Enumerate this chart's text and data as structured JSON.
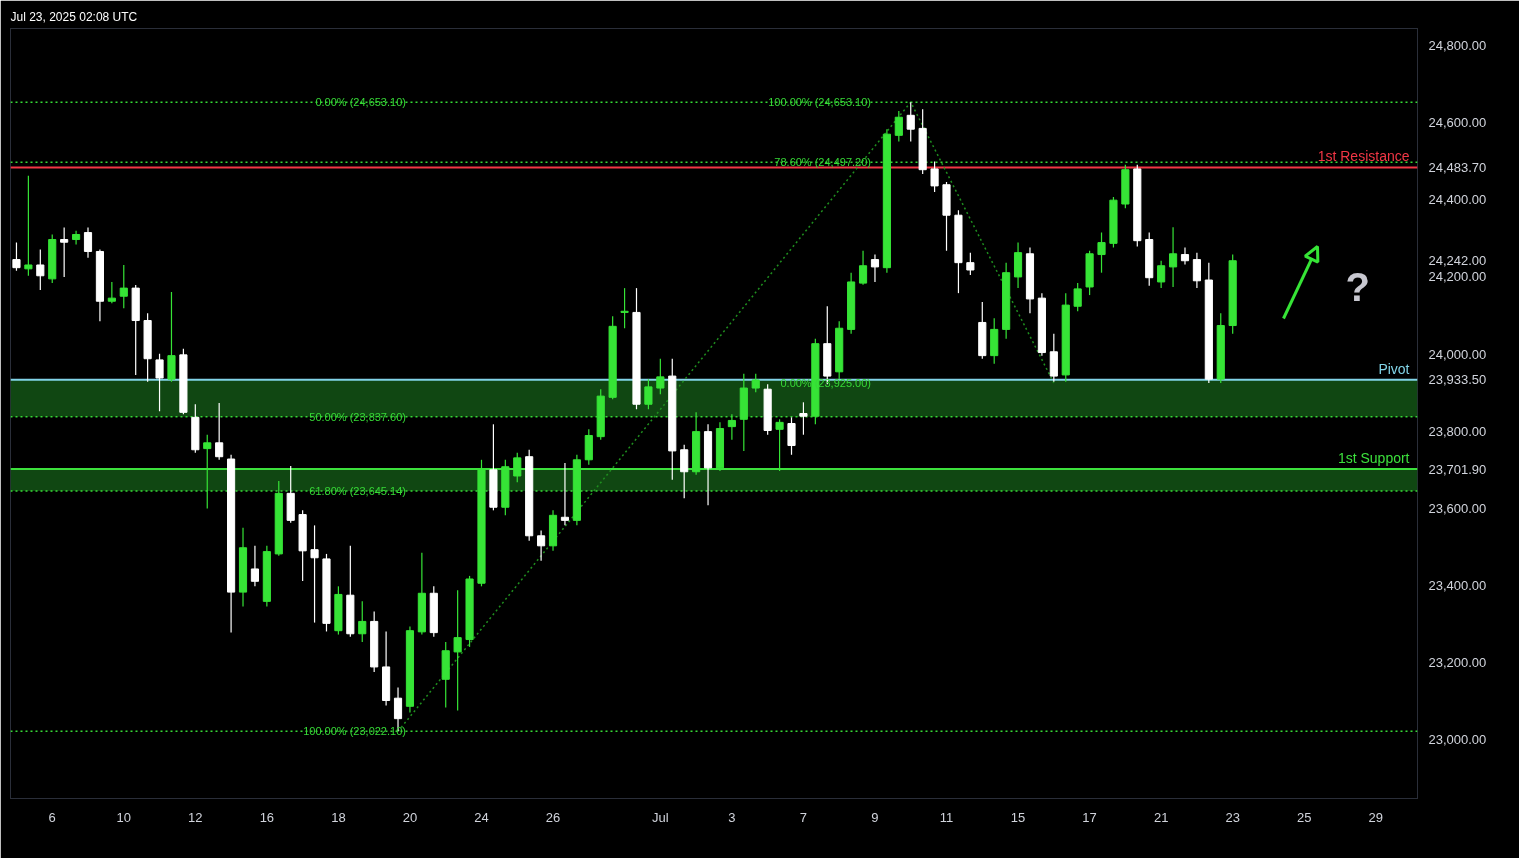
{
  "chart_data": {
    "type": "candlestick",
    "annotations": [
      "Jul 23, 2025 02:08 UTC",
      {
        "text": "0.00% (24,653.10)",
        "x": "20",
        "y": 24653.1
      },
      {
        "text": "50.00% (23,837.60)",
        "x": "20",
        "y": 23837.6
      },
      {
        "text": "61.80% (23,645.14)",
        "x": "20",
        "y": 23645.14
      },
      {
        "text": "100.00% (23,022.10)",
        "x": "20",
        "y": 23022.1
      },
      {
        "text": "100.00% (24,653.10)",
        "x": "9",
        "y": 24653.1
      },
      {
        "text": "78.60% (24,497.20)",
        "x": "9",
        "y": 24497.2
      },
      {
        "text": "0.00% (23,925.00)",
        "x": "9",
        "y": 23925
      },
      "?"
    ],
    "categories": [
      null,
      null,
      null,
      "6",
      null,
      null,
      null,
      null,
      null,
      "10",
      null,
      null,
      null,
      null,
      null,
      "12",
      null,
      null,
      null,
      null,
      null,
      "16",
      null,
      null,
      null,
      null,
      null,
      "18",
      null,
      null,
      null,
      null,
      null,
      "20",
      null,
      null,
      null,
      null,
      null,
      "24",
      null,
      null,
      null,
      null,
      null,
      "26",
      null,
      null,
      null,
      null,
      null,
      null,
      null,
      null,
      "Jul",
      null,
      null,
      null,
      null,
      null,
      "3",
      null,
      null,
      null,
      null,
      null,
      "7",
      null,
      null,
      null,
      null,
      null,
      "9",
      null,
      null,
      null,
      null,
      null,
      "11",
      null,
      null,
      null,
      null,
      null,
      "15",
      null,
      null,
      null,
      null,
      null,
      "17",
      null,
      null,
      null,
      null,
      null,
      "21",
      null,
      null,
      null,
      null,
      null,
      "23",
      null,
      null,
      null,
      null,
      null,
      "25",
      null,
      null,
      null,
      null,
      null,
      "29",
      null,
      null,
      null
    ],
    "ohlc": [
      [
        24245,
        24289,
        24216,
        24224
      ],
      [
        24221,
        24462,
        24203,
        24231
      ],
      [
        24231,
        24271,
        24166,
        24203
      ],
      [
        24195,
        24310,
        24184,
        24297
      ],
      [
        24297,
        24328,
        24200,
        24290
      ],
      [
        24297,
        24320,
        24284,
        24310
      ],
      [
        24315,
        24328,
        24250,
        24266
      ],
      [
        24266,
        24271,
        24085,
        24137
      ],
      [
        24137,
        24187,
        24132,
        24145
      ],
      [
        24150,
        24231,
        24119,
        24171
      ],
      [
        24171,
        24179,
        23946,
        24087
      ],
      [
        24087,
        24106,
        23928,
        23988
      ],
      [
        23985,
        24001,
        23852,
        23938
      ],
      [
        23935,
        24161,
        23928,
        23996
      ],
      [
        23998,
        24014,
        23844,
        23849
      ],
      [
        23836,
        23870,
        23744,
        23752
      ],
      [
        23755,
        23791,
        23600,
        23770
      ],
      [
        23770,
        23873,
        23726,
        23734
      ],
      [
        23728,
        23739,
        23278,
        23383
      ],
      [
        23383,
        23550,
        23346,
        23498
      ],
      [
        23443,
        23503,
        23398,
        23411
      ],
      [
        23359,
        23503,
        23346,
        23488
      ],
      [
        23482,
        23671,
        23477,
        23639
      ],
      [
        23639,
        23710,
        23563,
        23569
      ],
      [
        23584,
        23595,
        23412,
        23490
      ],
      [
        23493,
        23556,
        23304,
        23472
      ],
      [
        23469,
        23482,
        23281,
        23302
      ],
      [
        23283,
        23398,
        23273,
        23377
      ],
      [
        23375,
        23503,
        23267,
        23275
      ],
      [
        23275,
        23359,
        23254,
        23307
      ],
      [
        23307,
        23333,
        23176,
        23189
      ],
      [
        23189,
        23281,
        23089,
        23102
      ],
      [
        23108,
        23136,
        23022.1,
        23055
      ],
      [
        23087,
        23294,
        23071,
        23283
      ],
      [
        23280,
        23485,
        23273,
        23380
      ],
      [
        23380,
        23398,
        23267,
        23278
      ],
      [
        23157,
        23254,
        23084,
        23231
      ],
      [
        23228,
        23388,
        23076,
        23265
      ],
      [
        23260,
        23425,
        23241,
        23417
      ],
      [
        23406,
        23726,
        23398,
        23702
      ],
      [
        23700,
        23818,
        23595,
        23603
      ],
      [
        23603,
        23726,
        23582,
        23708
      ],
      [
        23684,
        23744,
        23668,
        23731
      ],
      [
        23734,
        23752,
        23516,
        23529
      ],
      [
        23529,
        23543,
        23464,
        23503
      ],
      [
        23503,
        23595,
        23490,
        23582
      ],
      [
        23577,
        23718,
        23556,
        23569
      ],
      [
        23569,
        23739,
        23556,
        23726
      ],
      [
        23726,
        23805,
        23713,
        23789
      ],
      [
        23786,
        23909,
        23778,
        23891
      ],
      [
        23888,
        24098,
        23883,
        24072
      ],
      [
        24108,
        24171,
        24067,
        24111
      ],
      [
        24108,
        24171,
        23857,
        23870
      ],
      [
        23870,
        23935,
        23857,
        23915
      ],
      [
        23912,
        23988,
        23896,
        23941
      ],
      [
        23943,
        23988,
        23674,
        23749
      ],
      [
        23752,
        23765,
        23626,
        23695
      ],
      [
        23695,
        23849,
        23687,
        23799
      ],
      [
        23799,
        23818,
        23608,
        23705
      ],
      [
        23705,
        23823,
        23697,
        23807
      ],
      [
        23812,
        23844,
        23778,
        23828
      ],
      [
        23831,
        23949,
        23749,
        23912
      ],
      [
        23912,
        23949,
        23901,
        23933
      ],
      [
        23909,
        23922,
        23791,
        23802
      ],
      [
        23805,
        23831,
        23697,
        23823
      ],
      [
        23820,
        23836,
        23739,
        23763
      ],
      [
        23846,
        23875,
        23791,
        23839
      ],
      [
        23839,
        24040,
        23818,
        24027
      ],
      [
        24027,
        24124,
        23922,
        23943
      ],
      [
        23954,
        24085,
        23935,
        24067
      ],
      [
        24064,
        24211,
        24053,
        24187
      ],
      [
        24184,
        24268,
        24180,
        24229
      ],
      [
        24245,
        24258,
        24187,
        24226
      ],
      [
        24224,
        24583,
        24211,
        24570
      ],
      [
        24567,
        24630,
        24551,
        24614
      ],
      [
        24619,
        24653.1,
        24551,
        24583
      ],
      [
        24585,
        24635,
        24467,
        24478
      ],
      [
        24480,
        24499,
        24420,
        24436
      ],
      [
        24439,
        24446,
        24268,
        24360
      ],
      [
        24360,
        24373,
        24158,
        24237
      ],
      [
        24237,
        24263,
        24205,
        24218
      ],
      [
        24082,
        24135,
        23988,
        23996
      ],
      [
        23996,
        24093,
        23975,
        24064
      ],
      [
        24064,
        24237,
        24040,
        24211
      ],
      [
        24200,
        24289,
        24171,
        24263
      ],
      [
        24260,
        24276,
        24106,
        24143
      ],
      [
        24145,
        24158,
        23996,
        24004
      ],
      [
        24006,
        24053,
        23928,
        23943
      ],
      [
        23946,
        24158,
        23928,
        24127
      ],
      [
        24124,
        24184,
        24111,
        24169
      ],
      [
        24174,
        24268,
        24153,
        24260
      ],
      [
        24258,
        24315,
        24211,
        24289
      ],
      [
        24287,
        24407,
        24276,
        24399
      ],
      [
        24389,
        24491,
        24378,
        24478
      ],
      [
        24480,
        24491,
        24279,
        24294
      ],
      [
        24297,
        24315,
        24177,
        24198
      ],
      [
        24187,
        24242,
        24171,
        24229
      ],
      [
        24226,
        24329,
        24174,
        24260
      ],
      [
        24258,
        24276,
        24232,
        24242
      ],
      [
        24245,
        24263,
        24171,
        24190
      ],
      [
        24192,
        24237,
        23925,
        23935
      ],
      [
        23935,
        24106,
        23925,
        24074
      ],
      [
        24074,
        24258,
        24053,
        24242
      ],
      null,
      null,
      null,
      null,
      null,
      null,
      null,
      null,
      null,
      null,
      null,
      null,
      null,
      null,
      null
    ],
    "series": [
      {
        "type": "line",
        "line_style": "dotted",
        "color": "#1f8f1f",
        "values": [
          null,
          null,
          null,
          null,
          null,
          null,
          null,
          null,
          null,
          null,
          null,
          null,
          null,
          null,
          null,
          null,
          null,
          null,
          null,
          null,
          null,
          null,
          null,
          null,
          null,
          null,
          null,
          null,
          null,
          null,
          null,
          null,
          23022.1,
          null,
          null,
          null,
          null,
          null,
          null,
          null,
          null,
          null,
          null,
          null,
          null,
          null,
          null,
          null,
          null,
          null,
          null,
          null,
          null,
          null,
          null,
          null,
          null,
          null,
          null,
          null,
          null,
          null,
          null,
          null,
          null,
          null,
          null,
          null,
          null,
          null,
          null,
          null,
          null,
          null,
          null,
          24653.1,
          null,
          null,
          null,
          null,
          null,
          null,
          null,
          null,
          null,
          null,
          null,
          23925,
          null,
          null,
          null,
          null,
          null,
          null,
          null,
          null,
          null,
          null,
          null,
          null,
          null,
          null,
          null,
          null,
          null,
          null,
          null,
          null,
          null,
          null,
          null,
          null,
          null,
          null,
          null,
          null,
          null,
          null
        ]
      }
    ],
    "ylim": [
      22848,
      24844
    ],
    "yticks": [
      {
        "value": 23000,
        "label": "23,000.00"
      },
      {
        "value": 23200,
        "label": "23,200.00"
      },
      {
        "value": 23400,
        "label": "23,400.00"
      },
      {
        "value": 23600,
        "label": "23,600.00"
      },
      {
        "value": 23800,
        "label": "23,800.00"
      },
      {
        "value": 24000,
        "label": "24,000.00"
      },
      {
        "value": 24200,
        "label": "24,200.00"
      },
      {
        "value": 24242,
        "label": "24,242.00"
      },
      {
        "value": 23933.5,
        "label": "23,933.50"
      },
      {
        "value": 23701.9,
        "label": "23,701.90"
      },
      {
        "value": 24483.7,
        "label": "24,483.70"
      },
      {
        "value": 24400,
        "label": "24,400.00"
      },
      {
        "value": 24600,
        "label": "24,600.00"
      },
      {
        "value": 24800,
        "label": "24,800.00"
      }
    ],
    "ref_lines": [
      {
        "axis": "y",
        "value": 24653.1,
        "color": "#36d936",
        "line_style": "dotted"
      },
      {
        "axis": "y",
        "value": 24497.2,
        "color": "#36d936",
        "line_style": "dotted"
      },
      {
        "axis": "y",
        "value": 23837.6,
        "color": "#36d936",
        "line_style": "dotted"
      },
      {
        "axis": "y",
        "value": 23645.14,
        "color": "#36d936",
        "line_style": "dotted"
      },
      {
        "axis": "y",
        "value": 23022.1,
        "color": "#36d936",
        "line_style": "dotted"
      },
      {
        "axis": "y",
        "value": 24483.7,
        "label": "1st Resistance",
        "color": "#f23645",
        "line_style": "solid"
      },
      {
        "axis": "y",
        "value": 23933.5,
        "label": "Pivot",
        "color": "#82d4e8",
        "line_style": "solid"
      },
      {
        "axis": "y",
        "value": 23701.9,
        "label": "1st Support",
        "color": "#3ce03c",
        "line_style": "solid"
      }
    ],
    "bands": [
      {
        "axis": "y",
        "from": 23837.6,
        "to": 23933.5,
        "color": "#124f14"
      },
      {
        "axis": "y",
        "from": 23645.14,
        "to": 23701.9,
        "color": "#124f14"
      }
    ]
  }
}
